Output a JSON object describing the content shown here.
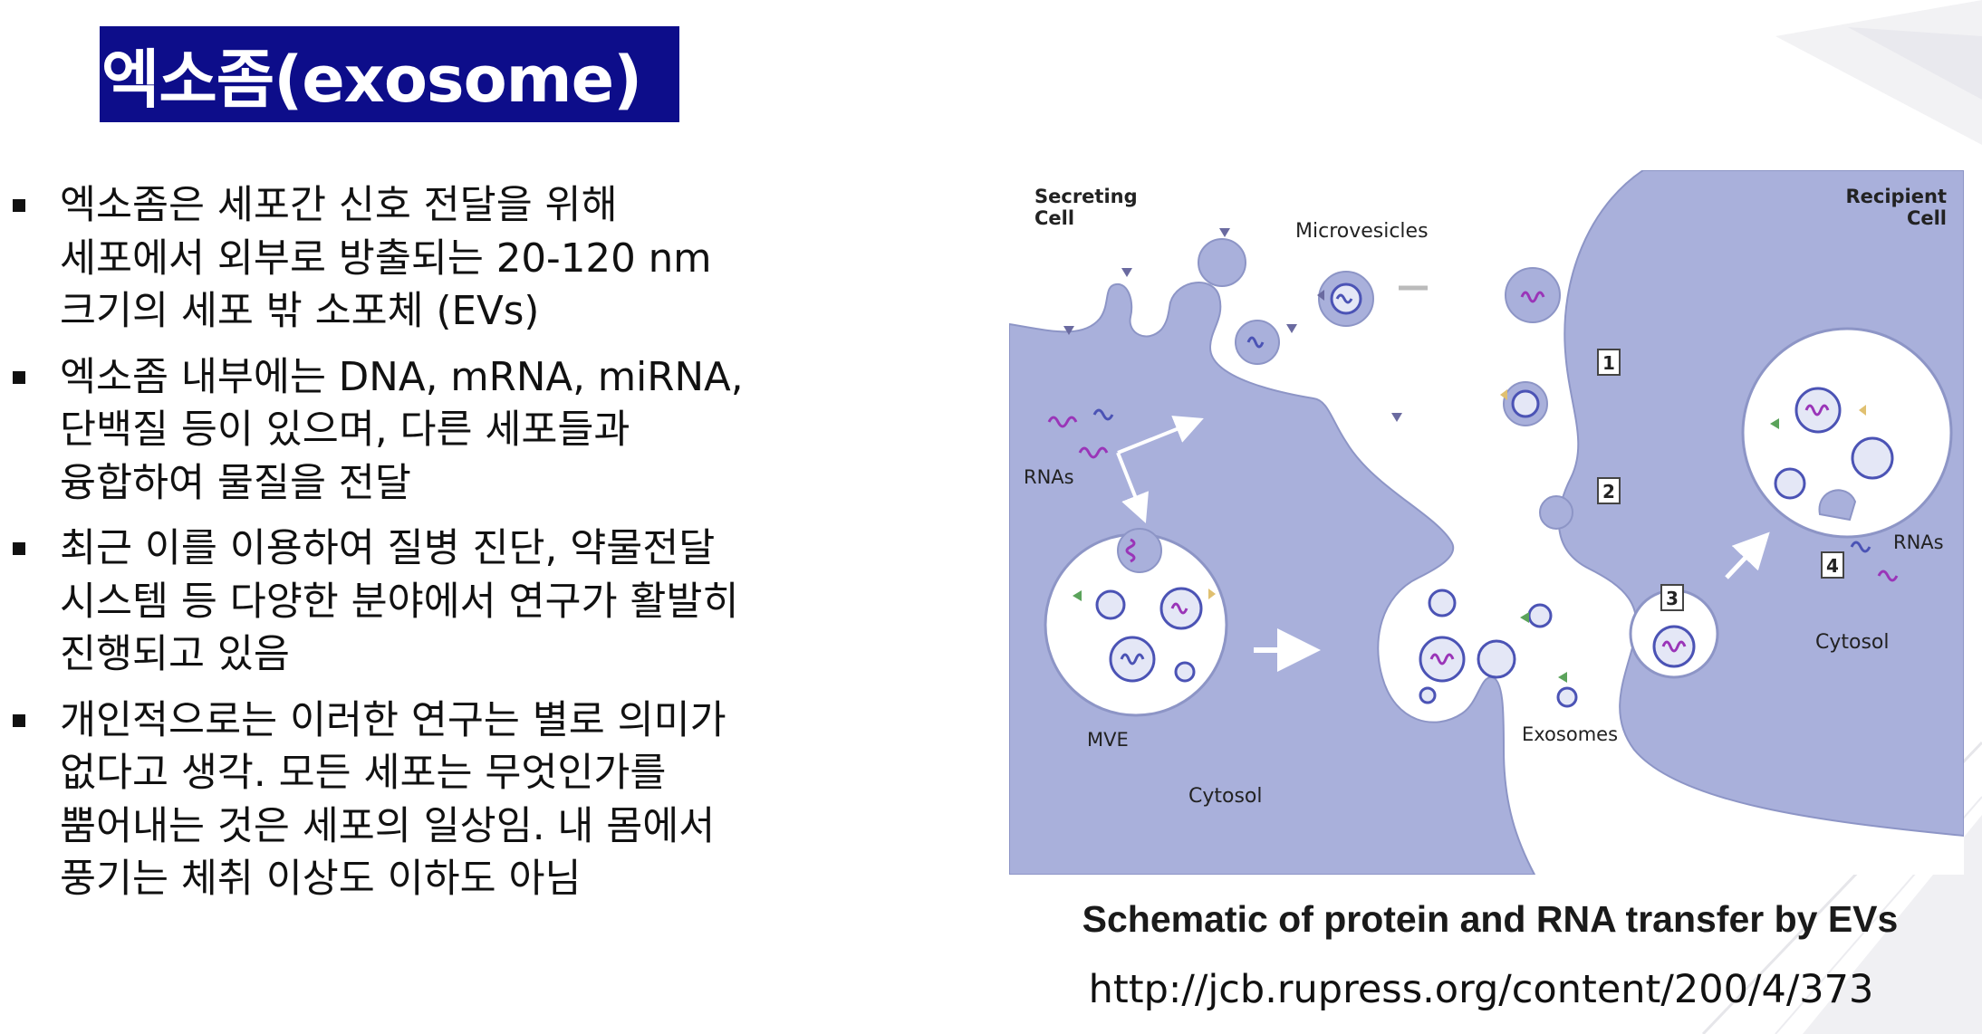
{
  "slide": {
    "title": "엑소좀(exosome)",
    "bullets": [
      {
        "lines": [
          "엑소좀은 세포간 신호 전달을 위해",
          "세포에서 외부로 방출되는 20-120 nm",
          "크기의 세포 밖 소포체 (EVs)"
        ]
      },
      {
        "lines": [
          "엑소좀 내부에는 DNA, mRNA, miRNA,",
          "단백질 등이 있으며, 다른 세포들과",
          "융합하여 물질을 전달"
        ]
      },
      {
        "lines": [
          "최근 이를 이용하여 질병 진단, 약물전달",
          "시스템 등 다양한 분야에서 연구가 활발히",
          "진행되고 있음"
        ]
      },
      {
        "lines": [
          "개인적으로는 이러한 연구는 별로 의미가",
          "없다고 생각. 모든 세포는 무엇인가를",
          "뿜어내는 것은 세포의 일상임. 내 몸에서",
          "풍기는 체취 이상도 이하도 아님"
        ]
      }
    ],
    "figure": {
      "labels": {
        "secreting_line1": "Secreting",
        "secreting_line2": "Cell",
        "recipient_line1": "Recipient",
        "recipient_line2": "Cell",
        "microvesicles": "Microvesicles",
        "rnas_left": "RNAs",
        "rnas_right": "RNAs",
        "mve": "MVE",
        "cytosol_left": "Cytosol",
        "cytosol_right": "Cytosol",
        "exosomes": "Exosomes",
        "step1": "1",
        "step2": "2",
        "step3": "3",
        "step4": "4"
      }
    },
    "caption": "Schematic of protein and RNA transfer by EVs",
    "source_url": "http://jcb.rupress.org/content/200/4/373"
  },
  "colors": {
    "title_bg": "#0d0d8a",
    "title_text": "#ffffff",
    "cell_fill": "#a9b0db",
    "cell_edge": "#8d95c6",
    "vesicle_fill": "#e4e7f6",
    "rna_purple": "#9a35b8",
    "rna_blue": "#4b53b5"
  }
}
